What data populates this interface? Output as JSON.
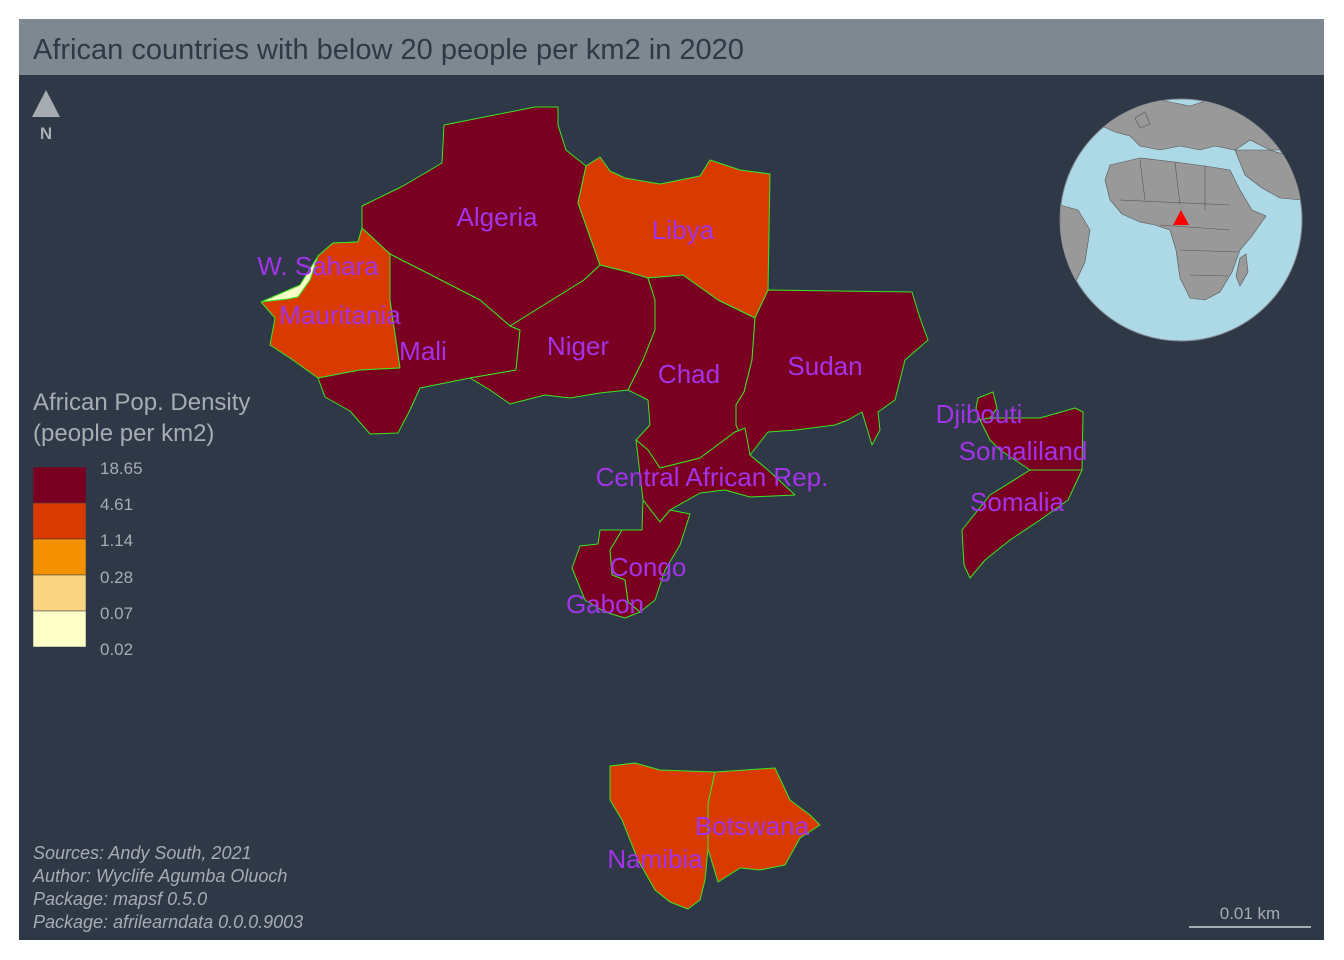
{
  "title": "African countries with below 20 people per km2 in 2020",
  "colors": {
    "background": "#2f3846",
    "title_bar": "#7f8790",
    "border": "#39e622",
    "label": "#a233e8",
    "ocean": "#add8e6",
    "land": "#999999",
    "locator": "#ff0000"
  },
  "north_arrow": {
    "label": "N",
    "icon": "north-arrow-icon"
  },
  "legend": {
    "title_line1": "African Pop. Density",
    "title_line2": "(people per km2)",
    "breaks": [
      "18.65",
      "4.61",
      "1.14",
      "0.28",
      "0.07",
      "0.02"
    ],
    "colors": [
      "#7a0022",
      "#d93a00",
      "#f39100",
      "#fad584",
      "#ffffc8"
    ]
  },
  "countries": [
    {
      "name": "Algeria",
      "density_class": 1
    },
    {
      "name": "Libya",
      "density_class": 2
    },
    {
      "name": "W. Sahara",
      "density_class": 5
    },
    {
      "name": "Mauritania",
      "density_class": 2
    },
    {
      "name": "Mali",
      "density_class": 1
    },
    {
      "name": "Niger",
      "density_class": 1
    },
    {
      "name": "Chad",
      "density_class": 1
    },
    {
      "name": "Sudan",
      "density_class": 1
    },
    {
      "name": "Djibouti",
      "density_class": 1
    },
    {
      "name": "Somaliland",
      "density_class": 1
    },
    {
      "name": "Somalia",
      "density_class": 1
    },
    {
      "name": "Central African Rep.",
      "density_class": 1
    },
    {
      "name": "Congo",
      "density_class": 1
    },
    {
      "name": "Gabon",
      "density_class": 1
    },
    {
      "name": "Namibia",
      "density_class": 2
    },
    {
      "name": "Botswana",
      "density_class": 2
    }
  ],
  "credits": [
    "Sources: Andy South, 2021",
    "Author: Wyclife Agumba Oluoch",
    "Package: mapsf 0.5.0",
    "Package: afrilearndata 0.0.0.9003"
  ],
  "scale_bar": {
    "label": "0.01 km"
  },
  "inset": {
    "icon": "globe-icon",
    "marker": "locator-triangle-icon"
  }
}
